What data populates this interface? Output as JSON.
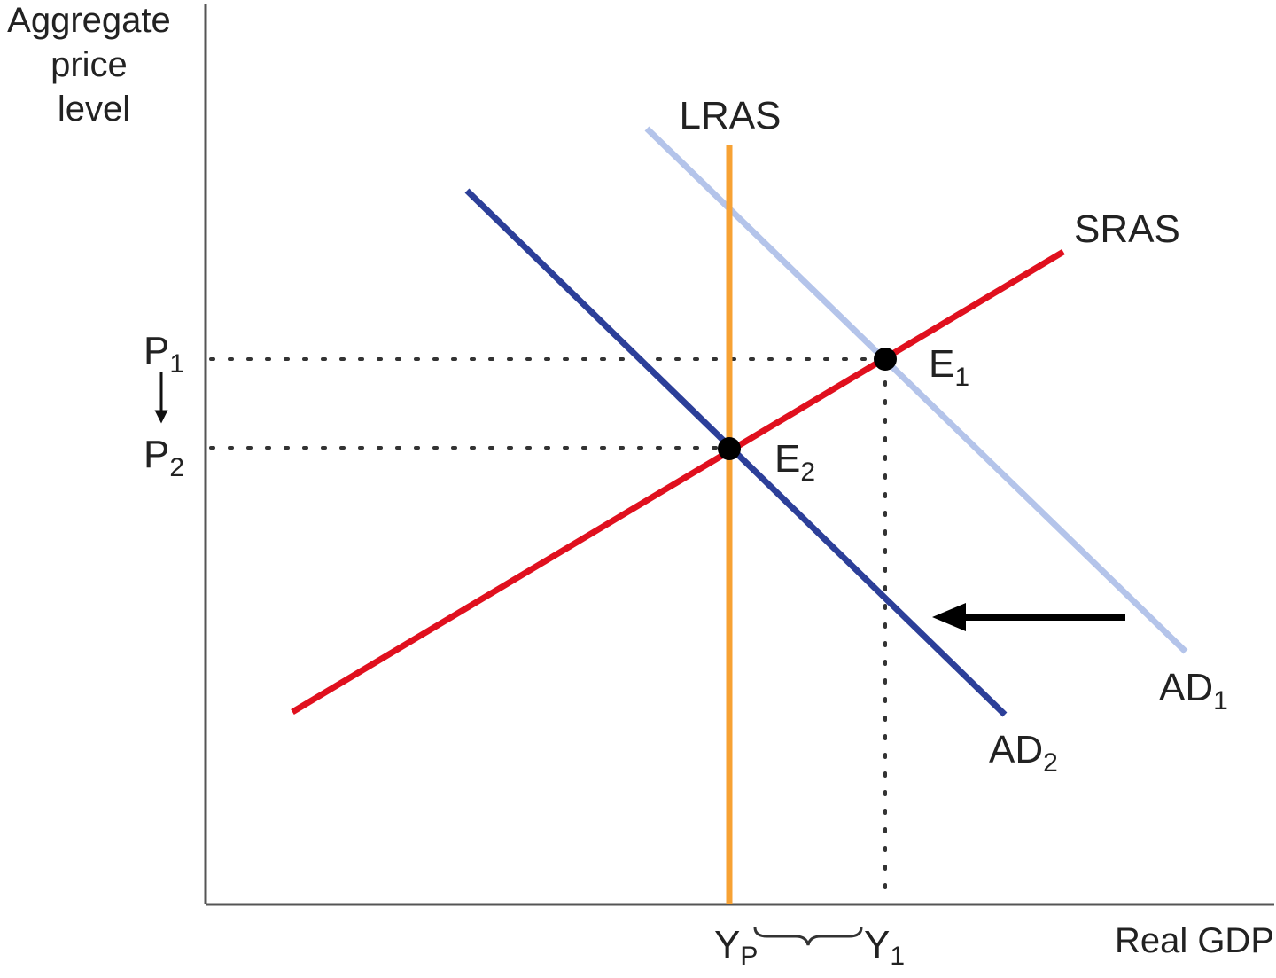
{
  "axes": {
    "y_title_lines": [
      "Aggregate",
      "price",
      "level"
    ],
    "x_title": "Real GDP"
  },
  "curves": {
    "lras": {
      "label": "LRAS",
      "color": "#f7a234"
    },
    "sras": {
      "label": "SRAS",
      "color": "#e0101e"
    },
    "ad1": {
      "label": "AD",
      "sub": "1",
      "color": "#b4c4ea"
    },
    "ad2": {
      "label": "AD",
      "sub": "2",
      "color": "#2c3f99"
    }
  },
  "equilibria": {
    "e1": {
      "label": "E",
      "sub": "1"
    },
    "e2": {
      "label": "E",
      "sub": "2"
    }
  },
  "price_levels": {
    "p1": {
      "label": "P",
      "sub": "1"
    },
    "p2": {
      "label": "P",
      "sub": "2"
    }
  },
  "output_levels": {
    "yp": {
      "label": "Y",
      "sub": "P"
    },
    "y1": {
      "label": "Y",
      "sub": "1"
    }
  },
  "colors": {
    "axis": "#555555",
    "guide": "#333333",
    "point": "#000000",
    "arrow": "#000000"
  }
}
